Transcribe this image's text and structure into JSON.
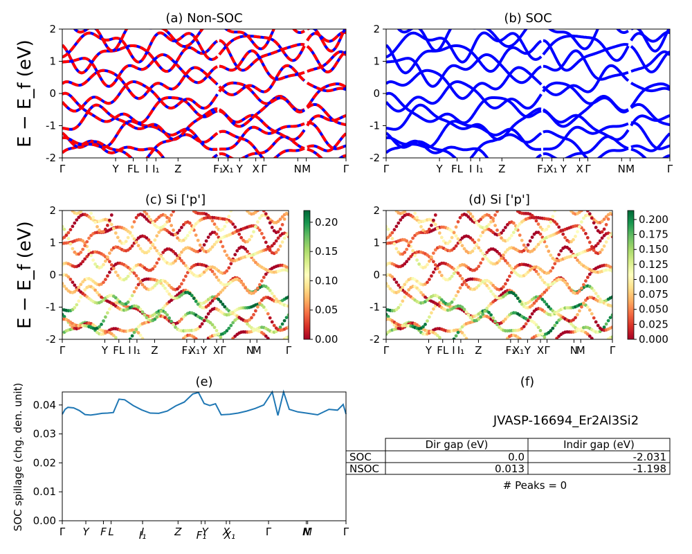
{
  "figure": {
    "ylabel_energy": "E − E_f (eV)",
    "ylabel_spillage": "SOC spillage (chg. den. unit)",
    "kpath_labels": [
      "Γ",
      "Y",
      "F",
      "L",
      "I",
      "I₁",
      "Z",
      "F₁",
      "X₁",
      "Y",
      "X",
      "Γ",
      "N",
      "M",
      "Γ"
    ]
  },
  "chart_data": [
    {
      "id": "a",
      "type": "line",
      "title": "(a) Non-SOC",
      "ylim": [
        -2,
        2
      ],
      "yticks": [
        -2,
        -1,
        0,
        1,
        2
      ],
      "xtick_labels": [
        "Γ",
        "Y",
        "FL",
        "I",
        "I₁",
        "Z",
        "F₁",
        "X₁",
        "Y",
        "X",
        "Γ",
        "N",
        "M",
        "Γ"
      ],
      "series_colors": [
        "#ff0000",
        "#0000ff"
      ],
      "bands_count": 11
    },
    {
      "id": "b",
      "type": "line",
      "title": "(b) SOC",
      "ylim": [
        -2,
        2
      ],
      "yticks": [
        -2,
        -1,
        0,
        1,
        2
      ],
      "xtick_labels": [
        "Γ",
        "Y",
        "FL",
        "I",
        "I₁",
        "Z",
        "F₁",
        "X₁",
        "Y",
        "X",
        "Γ",
        "N",
        "M",
        "Γ"
      ],
      "series_colors": [
        "#0000ff"
      ],
      "bands_count": 11
    },
    {
      "id": "c",
      "type": "scatter",
      "title": "(c)  Si ['p']",
      "ylim": [
        -2,
        2
      ],
      "yticks": [
        -2,
        -1,
        0,
        1,
        2
      ],
      "xtick_labels": [
        "Γ",
        "Y",
        "FL",
        "I",
        "I₁",
        "Z",
        "F₁",
        "X₁",
        "Y",
        "X",
        "Γ",
        "N",
        "M",
        "Γ"
      ],
      "colorbar": {
        "min": 0,
        "max": 0.22,
        "ticks": [
          "0.00",
          "0.05",
          "0.10",
          "0.15",
          "0.20"
        ],
        "tick_values": [
          0,
          0.05,
          0.1,
          0.15,
          0.2
        ]
      }
    },
    {
      "id": "d",
      "type": "scatter",
      "title": "(d) Si ['p']",
      "ylim": [
        -2,
        2
      ],
      "yticks": [
        -2,
        -1,
        0,
        1,
        2
      ],
      "xtick_labels": [
        "Γ",
        "Y",
        "FL",
        "I",
        "I₁",
        "Z",
        "F₁",
        "X₁",
        "Y",
        "X",
        "Γ",
        "N",
        "M",
        "Γ"
      ],
      "colorbar": {
        "min": 0,
        "max": 0.215,
        "ticks": [
          "0.000",
          "0.025",
          "0.050",
          "0.075",
          "0.100",
          "0.125",
          "0.150",
          "0.175",
          "0.200"
        ],
        "tick_values": [
          0,
          0.025,
          0.05,
          0.075,
          0.1,
          0.125,
          0.15,
          0.175,
          0.2
        ]
      }
    },
    {
      "id": "e",
      "type": "line",
      "title": "(e)",
      "ylabel": "SOC spillage (chg. den. unit)",
      "ylim": [
        0,
        0.0445
      ],
      "yticks": [
        "0.00",
        "0.01",
        "0.02",
        "0.03",
        "0.04"
      ],
      "ytick_values": [
        0,
        0.01,
        0.02,
        0.03,
        0.04
      ],
      "xtick_labels": [
        "Γ",
        "Y",
        "F",
        "L",
        "I",
        "I₁",
        "Z",
        "F₁",
        "Y",
        "X",
        "X₁",
        "Γ",
        "N",
        "M",
        "Γ"
      ],
      "x": [
        0,
        0.01,
        0.02,
        0.04,
        0.06,
        0.08,
        0.1,
        0.12,
        0.14,
        0.16,
        0.18,
        0.2,
        0.22,
        0.25,
        0.28,
        0.31,
        0.34,
        0.37,
        0.4,
        0.43,
        0.46,
        0.48,
        0.5,
        0.52,
        0.54,
        0.56,
        0.59,
        0.62,
        0.65,
        0.68,
        0.71,
        0.74,
        0.76,
        0.78,
        0.8,
        0.83,
        0.86,
        0.9,
        0.94,
        0.97,
        0.99,
        1.0
      ],
      "values": [
        0.0368,
        0.0385,
        0.0392,
        0.039,
        0.0381,
        0.0367,
        0.0365,
        0.0368,
        0.0371,
        0.0372,
        0.0374,
        0.042,
        0.0418,
        0.0398,
        0.0383,
        0.0372,
        0.0371,
        0.0379,
        0.0397,
        0.041,
        0.0438,
        0.0443,
        0.0405,
        0.0398,
        0.0404,
        0.0366,
        0.0368,
        0.0372,
        0.0379,
        0.0388,
        0.04,
        0.0445,
        0.0364,
        0.0445,
        0.0385,
        0.0376,
        0.0372,
        0.0366,
        0.0385,
        0.0382,
        0.0402,
        0.0369
      ]
    }
  ],
  "panel_f": {
    "title": "(f)",
    "material": "JVASP-16694_Er2Al3Si2",
    "table": {
      "headers": [
        "",
        "Dir gap (eV)",
        "Indir gap (eV)"
      ],
      "rows": [
        [
          "SOC",
          "0.0",
          "-2.031"
        ],
        [
          "NSOC",
          "0.013",
          "-1.198"
        ]
      ]
    },
    "peaks": "# Peaks = 0"
  }
}
